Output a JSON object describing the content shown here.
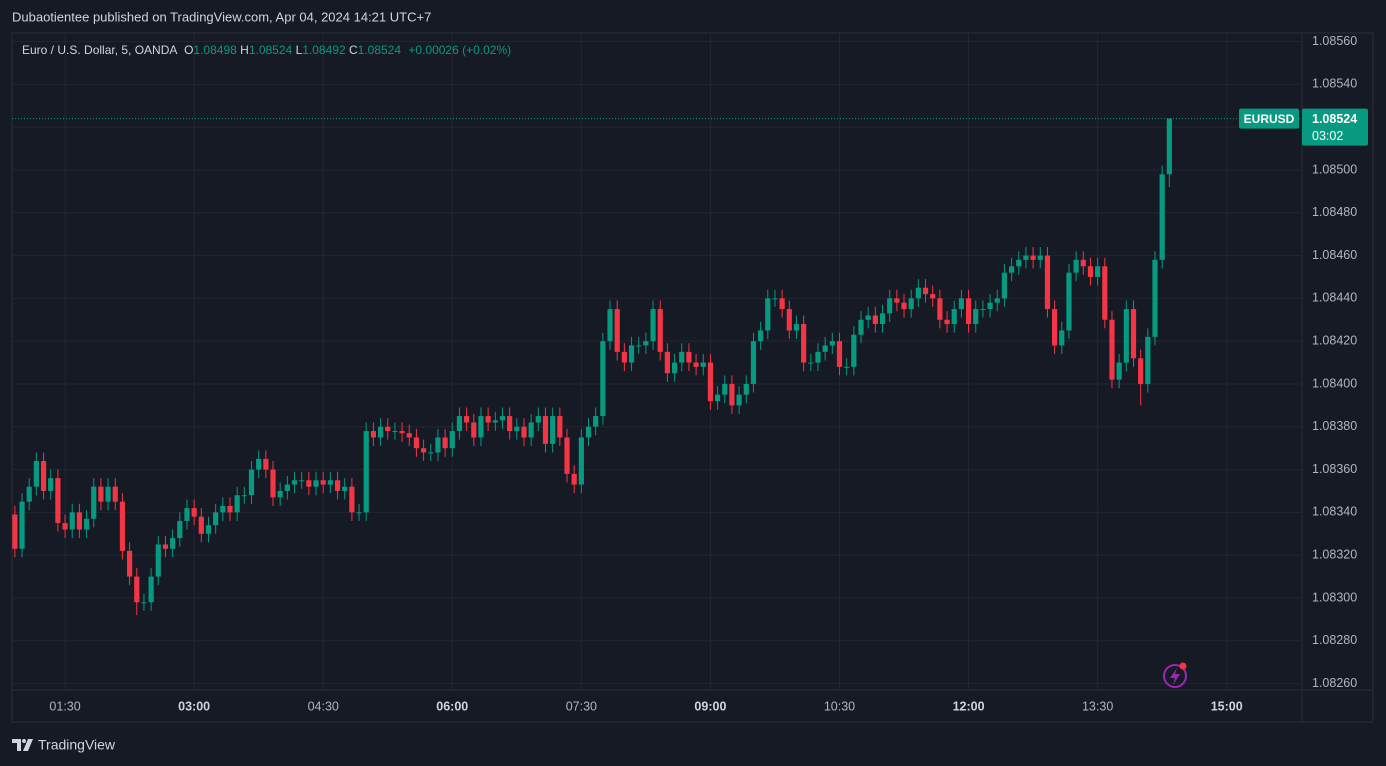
{
  "header": {
    "published": "Dubaotientee published on TradingView.com, Apr 04, 2024 14:21 UTC+7"
  },
  "footer": {
    "brand": "TradingView"
  },
  "chart_data": {
    "type": "candlestick",
    "symbol": "Euro / U.S. Dollar, 5, OANDA",
    "ohlc_labels": [
      "O",
      "H",
      "L",
      "C"
    ],
    "change": "+0.00026 (+0.02%)",
    "badge_symbol": "EURUSD",
    "countdown": "03:02",
    "up_color": "#089981",
    "down_color": "#f23645",
    "grid": true,
    "last_price_line": true,
    "open": [
      1.08339,
      1.08323,
      1.08345,
      1.08352,
      1.08364,
      1.0835,
      1.08356,
      1.08335,
      1.08332,
      1.0834,
      1.08332,
      1.08337,
      1.08352,
      1.08345,
      1.08352,
      1.08345,
      1.08322,
      1.0831,
      1.08298,
      1.08298,
      1.0831,
      1.08325,
      1.08323,
      1.08328,
      1.08336,
      1.08342,
      1.08338,
      1.0833,
      1.08334,
      1.0834,
      1.08343,
      1.0834,
      1.08348,
      1.08348,
      1.0836,
      1.08365,
      1.0836,
      1.08347,
      1.0835,
      1.08353,
      1.08355,
      1.08355,
      1.08352,
      1.08355,
      1.08353,
      1.08355,
      1.0835,
      1.08352,
      1.0834,
      1.0834,
      1.08378,
      1.08375,
      1.0838,
      1.08378,
      1.08378,
      1.08377,
      1.08375,
      1.0837,
      1.08368,
      1.08368,
      1.08375,
      1.0837,
      1.08378,
      1.08385,
      1.08382,
      1.08375,
      1.08385,
      1.08382,
      1.08383,
      1.08385,
      1.08378,
      1.0838,
      1.08375,
      1.08382,
      1.08385,
      1.08372,
      1.08385,
      1.08375,
      1.08358,
      1.08353,
      1.08375,
      1.0838,
      1.08385,
      1.0842,
      1.08435,
      1.08415,
      1.0841,
      1.08418,
      1.08418,
      1.0842,
      1.08435,
      1.08415,
      1.08405,
      1.0841,
      1.08415,
      1.0841,
      1.08408,
      1.0841,
      1.08392,
      1.08395,
      1.084,
      1.0839,
      1.08395,
      1.084,
      1.0842,
      1.08425,
      1.0844,
      1.0844,
      1.08435,
      1.08425,
      1.08428,
      1.0841,
      1.0841,
      1.08415,
      1.08418,
      1.0842,
      1.08408,
      1.08408,
      1.08423,
      1.0843,
      1.08432,
      1.08428,
      1.08433,
      1.0844,
      1.08438,
      1.08435,
      1.0844,
      1.08445,
      1.08442,
      1.0844,
      1.0843,
      1.08428,
      1.08435,
      1.0844,
      1.08428,
      1.08435,
      1.08435,
      1.08438,
      1.0844,
      1.08452,
      1.08455,
      1.08458,
      1.0846,
      1.08458,
      1.0846,
      1.08435,
      1.08418,
      1.08425,
      1.08452,
      1.08458,
      1.08455,
      1.0845,
      1.08455,
      1.0843,
      1.08402,
      1.0841,
      1.08435,
      1.08412,
      1.084,
      1.08422,
      1.08458,
      1.08498
    ],
    "high": [
      1.08343,
      1.08349,
      1.08356,
      1.08368,
      1.08368,
      1.0836,
      1.0836,
      1.08339,
      1.08344,
      1.08344,
      1.08341,
      1.08356,
      1.08356,
      1.08356,
      1.08356,
      1.08349,
      1.08326,
      1.08314,
      1.08302,
      1.08314,
      1.08329,
      1.08329,
      1.08332,
      1.0834,
      1.08346,
      1.08346,
      1.08342,
      1.08338,
      1.08344,
      1.08347,
      1.08347,
      1.08352,
      1.08352,
      1.08364,
      1.08369,
      1.08369,
      1.08364,
      1.08354,
      1.08357,
      1.08359,
      1.08359,
      1.08359,
      1.08359,
      1.08359,
      1.08359,
      1.08359,
      1.08356,
      1.08356,
      1.08344,
      1.08382,
      1.08382,
      1.08384,
      1.08384,
      1.08382,
      1.08382,
      1.08381,
      1.08379,
      1.08374,
      1.08372,
      1.08379,
      1.08379,
      1.08382,
      1.08389,
      1.08389,
      1.08386,
      1.08389,
      1.08389,
      1.08387,
      1.08389,
      1.08389,
      1.08384,
      1.08384,
      1.08386,
      1.08389,
      1.08389,
      1.08389,
      1.08389,
      1.08379,
      1.08362,
      1.08379,
      1.08384,
      1.08389,
      1.08424,
      1.08439,
      1.08439,
      1.08419,
      1.08422,
      1.08422,
      1.08424,
      1.08439,
      1.08439,
      1.08419,
      1.08414,
      1.08419,
      1.08419,
      1.08414,
      1.08414,
      1.08414,
      1.08399,
      1.08404,
      1.08404,
      1.08399,
      1.08404,
      1.08424,
      1.08429,
      1.08444,
      1.08444,
      1.08444,
      1.08439,
      1.08432,
      1.08432,
      1.08414,
      1.08419,
      1.08422,
      1.08424,
      1.08424,
      1.08412,
      1.08427,
      1.08434,
      1.08436,
      1.08436,
      1.08437,
      1.08444,
      1.08444,
      1.08442,
      1.08444,
      1.08449,
      1.08449,
      1.08446,
      1.08444,
      1.08434,
      1.08439,
      1.08444,
      1.08444,
      1.08439,
      1.08439,
      1.08442,
      1.08444,
      1.08456,
      1.08459,
      1.08462,
      1.08464,
      1.08464,
      1.08464,
      1.08464,
      1.08439,
      1.08429,
      1.08456,
      1.08462,
      1.08462,
      1.08459,
      1.08459,
      1.08459,
      1.08434,
      1.08414,
      1.08439,
      1.08439,
      1.08416,
      1.08426,
      1.08462,
      1.08502,
      1.08524
    ],
    "low": [
      1.08319,
      1.08319,
      1.08341,
      1.08348,
      1.08346,
      1.08346,
      1.08331,
      1.08328,
      1.08328,
      1.08328,
      1.08328,
      1.08333,
      1.08341,
      1.08341,
      1.08341,
      1.08318,
      1.08306,
      1.08292,
      1.08294,
      1.08294,
      1.08306,
      1.08319,
      1.08319,
      1.08324,
      1.08332,
      1.08334,
      1.08326,
      1.08326,
      1.0833,
      1.08336,
      1.08336,
      1.08336,
      1.08344,
      1.08344,
      1.08356,
      1.08356,
      1.08343,
      1.08343,
      1.08346,
      1.08349,
      1.08351,
      1.08348,
      1.08348,
      1.08349,
      1.08349,
      1.08346,
      1.08346,
      1.08336,
      1.08336,
      1.08336,
      1.08371,
      1.08371,
      1.08374,
      1.08374,
      1.08373,
      1.08371,
      1.08366,
      1.08364,
      1.08364,
      1.08364,
      1.08366,
      1.08366,
      1.08374,
      1.08378,
      1.08371,
      1.08371,
      1.08378,
      1.08378,
      1.08379,
      1.08374,
      1.08374,
      1.08371,
      1.08371,
      1.08378,
      1.08368,
      1.08368,
      1.08371,
      1.08354,
      1.08349,
      1.08349,
      1.08371,
      1.08376,
      1.08381,
      1.08416,
      1.08411,
      1.08406,
      1.08406,
      1.08414,
      1.08414,
      1.08416,
      1.08411,
      1.08401,
      1.08401,
      1.08406,
      1.08406,
      1.08404,
      1.08404,
      1.08388,
      1.08388,
      1.08391,
      1.08386,
      1.08386,
      1.08391,
      1.08396,
      1.08416,
      1.08421,
      1.08436,
      1.08431,
      1.08421,
      1.08421,
      1.08406,
      1.08406,
      1.08406,
      1.08411,
      1.08414,
      1.08404,
      1.08404,
      1.08404,
      1.08419,
      1.08426,
      1.08424,
      1.08424,
      1.08429,
      1.08434,
      1.08431,
      1.08431,
      1.08436,
      1.08438,
      1.08436,
      1.08426,
      1.08424,
      1.08424,
      1.08431,
      1.08424,
      1.08424,
      1.08431,
      1.08431,
      1.08434,
      1.08436,
      1.08448,
      1.08451,
      1.08454,
      1.08454,
      1.08454,
      1.08431,
      1.08414,
      1.08414,
      1.08421,
      1.08448,
      1.08451,
      1.08446,
      1.08446,
      1.08426,
      1.08398,
      1.08398,
      1.08406,
      1.08408,
      1.0839,
      1.08396,
      1.08418,
      1.08454,
      1.08492
    ],
    "close": [
      1.08323,
      1.08345,
      1.08352,
      1.08364,
      1.0835,
      1.08356,
      1.08335,
      1.08332,
      1.0834,
      1.08332,
      1.08337,
      1.08352,
      1.08345,
      1.08352,
      1.08345,
      1.08322,
      1.0831,
      1.08298,
      1.08298,
      1.0831,
      1.08325,
      1.08323,
      1.08328,
      1.08336,
      1.08342,
      1.08338,
      1.0833,
      1.08334,
      1.0834,
      1.08343,
      1.0834,
      1.08348,
      1.08348,
      1.0836,
      1.08365,
      1.0836,
      1.08347,
      1.0835,
      1.08353,
      1.08355,
      1.08355,
      1.08352,
      1.08355,
      1.08353,
      1.08355,
      1.0835,
      1.08352,
      1.0834,
      1.0834,
      1.08378,
      1.08375,
      1.0838,
      1.08378,
      1.08378,
      1.08377,
      1.08375,
      1.0837,
      1.08368,
      1.08368,
      1.08375,
      1.0837,
      1.08378,
      1.08385,
      1.08382,
      1.08375,
      1.08385,
      1.08382,
      1.08383,
      1.08385,
      1.08378,
      1.0838,
      1.08375,
      1.08382,
      1.08385,
      1.08372,
      1.08385,
      1.08375,
      1.08358,
      1.08353,
      1.08375,
      1.0838,
      1.08385,
      1.0842,
      1.08435,
      1.08415,
      1.0841,
      1.08418,
      1.08418,
      1.0842,
      1.08435,
      1.08415,
      1.08405,
      1.0841,
      1.08415,
      1.0841,
      1.08408,
      1.0841,
      1.08392,
      1.08395,
      1.084,
      1.0839,
      1.08395,
      1.084,
      1.0842,
      1.08425,
      1.0844,
      1.0844,
      1.08435,
      1.08425,
      1.08428,
      1.0841,
      1.0841,
      1.08415,
      1.08418,
      1.0842,
      1.08408,
      1.08408,
      1.08423,
      1.0843,
      1.08432,
      1.08428,
      1.08433,
      1.0844,
      1.08438,
      1.08435,
      1.0844,
      1.08445,
      1.08442,
      1.0844,
      1.0843,
      1.08428,
      1.08435,
      1.0844,
      1.08428,
      1.08435,
      1.08435,
      1.08438,
      1.0844,
      1.08452,
      1.08455,
      1.08458,
      1.0846,
      1.08458,
      1.0846,
      1.08435,
      1.08418,
      1.08425,
      1.08452,
      1.08458,
      1.08455,
      1.0845,
      1.08455,
      1.0843,
      1.08402,
      1.0841,
      1.08435,
      1.08412,
      1.084,
      1.08422,
      1.08458,
      1.08498,
      1.08524
    ],
    "xlim": [
      -0.4,
      179.5
    ],
    "xticks": [
      {
        "value": 7,
        "label": "01:30"
      },
      {
        "value": 25,
        "label": "03:00"
      },
      {
        "value": 43,
        "label": "04:30"
      },
      {
        "value": 61,
        "label": "06:00"
      },
      {
        "value": 79,
        "label": "07:30"
      },
      {
        "value": 97,
        "label": "09:00"
      },
      {
        "value": 115,
        "label": "10:30"
      },
      {
        "value": 133,
        "label": "12:00"
      },
      {
        "value": 151,
        "label": "13:30"
      },
      {
        "value": 169,
        "label": "15:00"
      }
    ],
    "ylim": [
      1.08257,
      1.08564
    ],
    "yticks": [
      {
        "value": 1.0826,
        "label": "1.08260"
      },
      {
        "value": 1.0828,
        "label": "1.08280"
      },
      {
        "value": 1.083,
        "label": "1.08300"
      },
      {
        "value": 1.0832,
        "label": "1.08320"
      },
      {
        "value": 1.0834,
        "label": "1.08340"
      },
      {
        "value": 1.0836,
        "label": "1.08360"
      },
      {
        "value": 1.0838,
        "label": "1.08380"
      },
      {
        "value": 1.084,
        "label": "1.08400"
      },
      {
        "value": 1.0842,
        "label": "1.08420"
      },
      {
        "value": 1.0844,
        "label": "1.08440"
      },
      {
        "value": 1.0846,
        "label": "1.08460"
      },
      {
        "value": 1.0848,
        "label": "1.08480"
      },
      {
        "value": 1.085,
        "label": "1.08500"
      },
      {
        "value": 1.0852,
        "label": "1.08520"
      },
      {
        "value": 1.0854,
        "label": "1.08540"
      },
      {
        "value": 1.0856,
        "label": "1.08560"
      }
    ]
  }
}
